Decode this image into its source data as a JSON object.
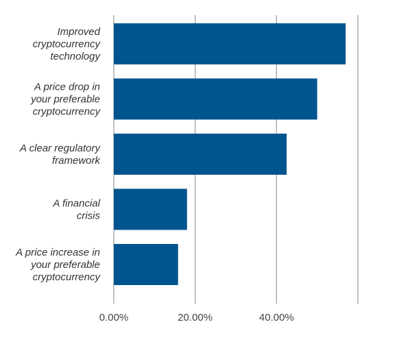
{
  "chart_data": {
    "type": "bar",
    "orientation": "horizontal",
    "categories": [
      [
        "Improved",
        "cryptocurrency",
        "technology"
      ],
      [
        "A price drop in",
        "your preferable",
        "cryptocurrency"
      ],
      [
        "A clear regulatory",
        "framework"
      ],
      [
        "A financial",
        "crisis"
      ],
      [
        "A price increase in",
        "your preferable",
        "cryptocurrency"
      ]
    ],
    "values": [
      0.57,
      0.5,
      0.425,
      0.18,
      0.158
    ],
    "xlim": [
      0,
      0.6
    ],
    "xticks": [
      {
        "value": 0,
        "label": "0.00%"
      },
      {
        "value": 0.2,
        "label": "20.00%"
      },
      {
        "value": 0.4,
        "label": "40.00%"
      },
      {
        "value": 0.6,
        "label": ""
      }
    ],
    "grid": true,
    "bar_color": "#00558f",
    "grid_color": "#9a9a9a"
  }
}
